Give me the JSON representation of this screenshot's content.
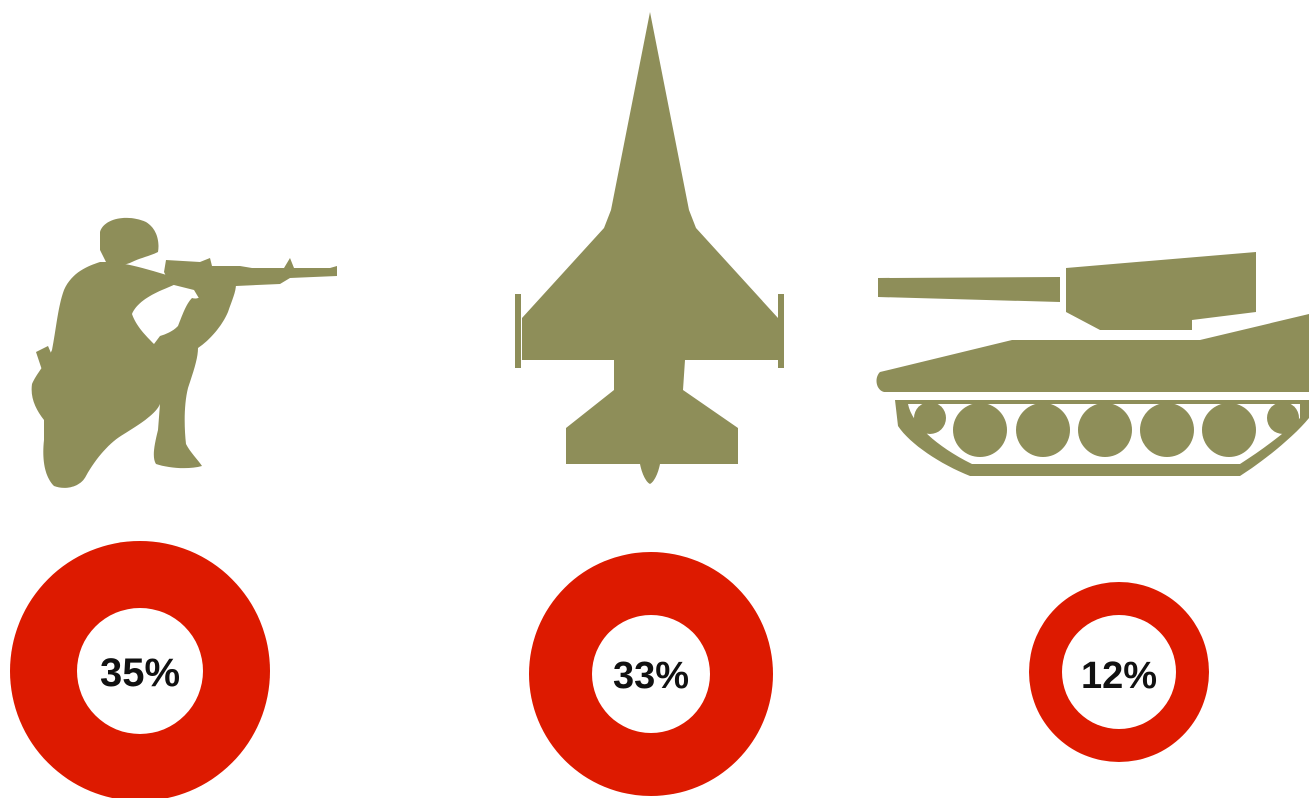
{
  "colors": {
    "silhouette": "#8e8e59",
    "ring": "#dd1a00",
    "ring_inner": "#ffffff",
    "text": "#111111"
  },
  "items": [
    {
      "icon": "soldier-icon",
      "percent_label": "35%",
      "value": 35
    },
    {
      "icon": "fighter-jet-icon",
      "percent_label": "33%",
      "value": 33
    },
    {
      "icon": "tank-icon",
      "percent_label": "12%",
      "value": 12
    }
  ]
}
